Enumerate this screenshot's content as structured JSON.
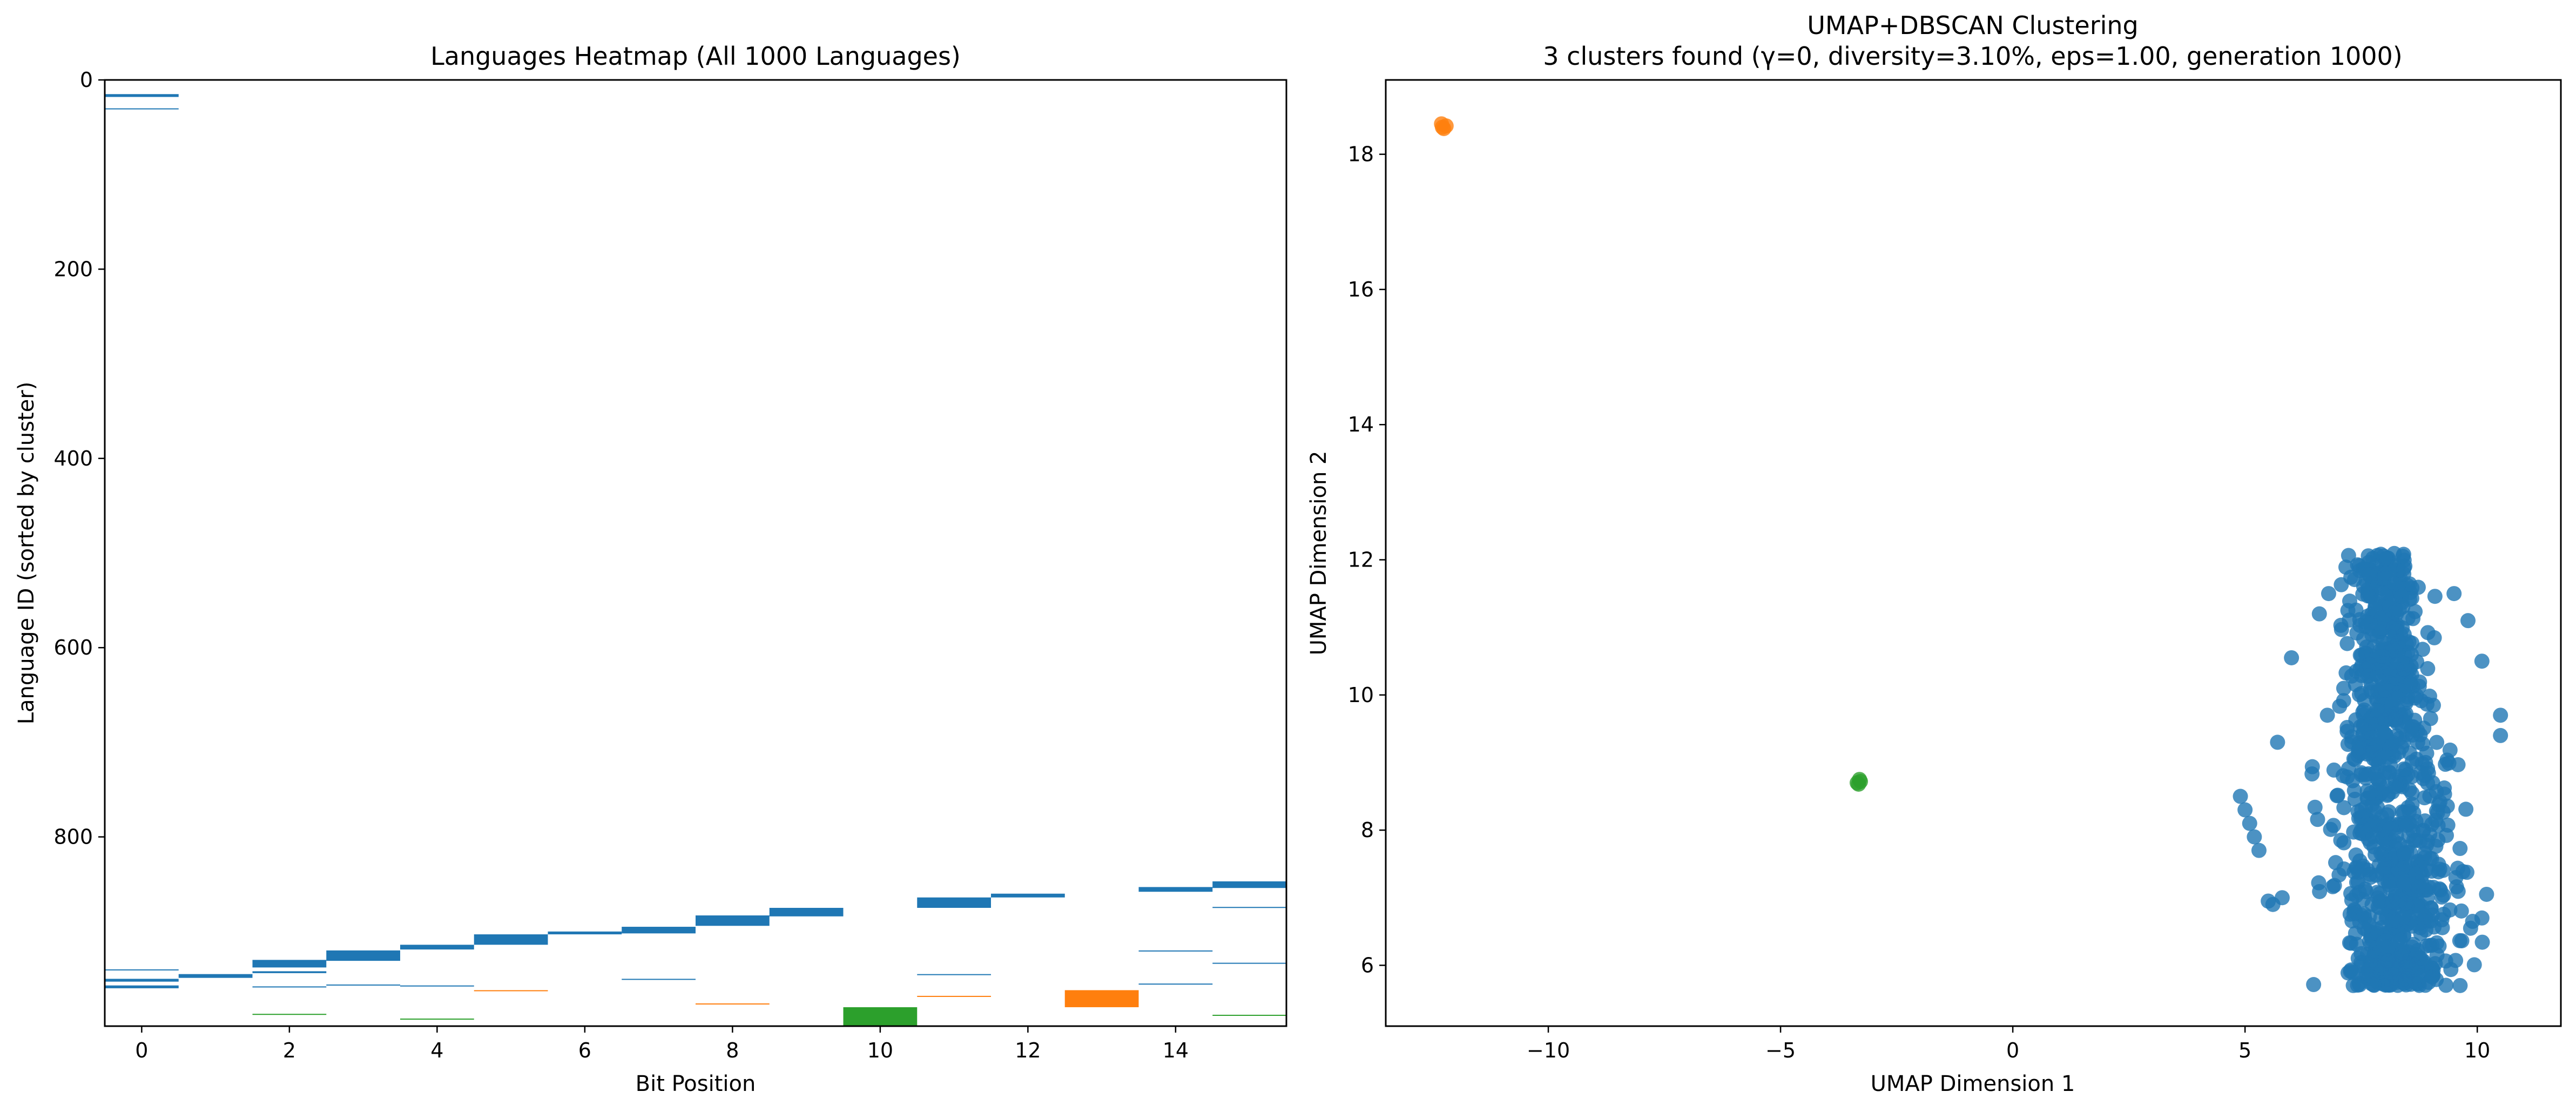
{
  "colors": {
    "blue": "#1f77b4",
    "orange": "#ff7f0e",
    "green": "#2ca02c"
  },
  "chart_data": [
    {
      "type": "heatmap",
      "title": "Languages Heatmap (All 1000 Languages)",
      "xlabel": "Bit Position",
      "ylabel": "Language ID (sorted by cluster)",
      "xlim": [
        -0.5,
        15.5
      ],
      "ylim": [
        0,
        1000
      ],
      "xticks": [
        0,
        2,
        4,
        6,
        8,
        10,
        12,
        14
      ],
      "yticks": [
        0,
        200,
        400,
        600,
        800
      ],
      "grid": false,
      "cells": [
        {
          "bit": 0,
          "y0": 15,
          "y1": 18,
          "cluster": "blue"
        },
        {
          "bit": 0,
          "y0": 30,
          "y1": 31,
          "cluster": "blue"
        },
        {
          "bit": 0,
          "y0": 940,
          "y1": 941,
          "cluster": "blue"
        },
        {
          "bit": 0,
          "y0": 950,
          "y1": 953,
          "cluster": "blue"
        },
        {
          "bit": 0,
          "y0": 957,
          "y1": 960,
          "cluster": "blue"
        },
        {
          "bit": 1,
          "y0": 945,
          "y1": 949,
          "cluster": "blue"
        },
        {
          "bit": 2,
          "y0": 930,
          "y1": 938,
          "cluster": "blue"
        },
        {
          "bit": 2,
          "y0": 942,
          "y1": 944,
          "cluster": "blue"
        },
        {
          "bit": 2,
          "y0": 958,
          "y1": 959,
          "cluster": "blue"
        },
        {
          "bit": 2,
          "y0": 987,
          "y1": 988,
          "cluster": "green"
        },
        {
          "bit": 3,
          "y0": 920,
          "y1": 931,
          "cluster": "blue"
        },
        {
          "bit": 3,
          "y0": 956,
          "y1": 957,
          "cluster": "blue"
        },
        {
          "bit": 4,
          "y0": 914,
          "y1": 919,
          "cluster": "blue"
        },
        {
          "bit": 4,
          "y0": 957,
          "y1": 958,
          "cluster": "blue"
        },
        {
          "bit": 4,
          "y0": 992,
          "y1": 993,
          "cluster": "green"
        },
        {
          "bit": 5,
          "y0": 903,
          "y1": 914,
          "cluster": "blue"
        },
        {
          "bit": 5,
          "y0": 962,
          "y1": 963,
          "cluster": "orange"
        },
        {
          "bit": 6,
          "y0": 900,
          "y1": 903,
          "cluster": "blue"
        },
        {
          "bit": 7,
          "y0": 895,
          "y1": 902,
          "cluster": "blue"
        },
        {
          "bit": 7,
          "y0": 950,
          "y1": 951,
          "cluster": "blue"
        },
        {
          "bit": 8,
          "y0": 883,
          "y1": 894,
          "cluster": "blue"
        },
        {
          "bit": 8,
          "y0": 976,
          "y1": 977,
          "cluster": "orange"
        },
        {
          "bit": 9,
          "y0": 875,
          "y1": 884,
          "cluster": "blue"
        },
        {
          "bit": 10,
          "y0": 980,
          "y1": 1000,
          "cluster": "green"
        },
        {
          "bit": 11,
          "y0": 864,
          "y1": 875,
          "cluster": "blue"
        },
        {
          "bit": 11,
          "y0": 945,
          "y1": 946,
          "cluster": "blue"
        },
        {
          "bit": 11,
          "y0": 968,
          "y1": 969,
          "cluster": "orange"
        },
        {
          "bit": 12,
          "y0": 860,
          "y1": 864,
          "cluster": "blue"
        },
        {
          "bit": 13,
          "y0": 962,
          "y1": 980,
          "cluster": "orange"
        },
        {
          "bit": 14,
          "y0": 853,
          "y1": 858,
          "cluster": "blue"
        },
        {
          "bit": 14,
          "y0": 920,
          "y1": 921,
          "cluster": "blue"
        },
        {
          "bit": 14,
          "y0": 955,
          "y1": 956,
          "cluster": "blue"
        },
        {
          "bit": 15,
          "y0": 847,
          "y1": 854,
          "cluster": "blue"
        },
        {
          "bit": 15,
          "y0": 874,
          "y1": 875,
          "cluster": "blue"
        },
        {
          "bit": 15,
          "y0": 933,
          "y1": 934,
          "cluster": "blue"
        },
        {
          "bit": 15,
          "y0": 988,
          "y1": 989,
          "cluster": "green"
        }
      ]
    },
    {
      "type": "scatter",
      "title": "UMAP+DBSCAN Clustering",
      "subtitle": "3 clusters found (γ=0, diversity=3.10%, eps=1.00, generation 1000)",
      "xlabel": "UMAP Dimension 1",
      "ylabel": "UMAP Dimension 2",
      "xlim": [
        -13.5,
        11.8
      ],
      "ylim": [
        5.1,
        19.1
      ],
      "xticks": [
        "−10",
        "−5",
        "0",
        "5",
        "10"
      ],
      "xtick_values": [
        -10,
        -5,
        0,
        5,
        10
      ],
      "yticks": [
        6,
        8,
        10,
        12,
        14,
        16,
        18
      ],
      "grid": false,
      "series": [
        {
          "cluster": "orange",
          "points": [
            [
              -12.3,
              18.45
            ],
            [
              -12.25,
              18.38
            ],
            [
              -12.2,
              18.42
            ],
            [
              -12.28,
              18.4
            ]
          ]
        },
        {
          "cluster": "green",
          "points": [
            [
              -3.35,
              8.7
            ],
            [
              -3.3,
              8.75
            ],
            [
              -3.32,
              8.68
            ],
            [
              -3.28,
              8.72
            ]
          ]
        },
        {
          "cluster": "blue",
          "region": {
            "x_center": 8.0,
            "y_center": 8.2,
            "x_spread": 1.6,
            "y_range": [
              5.7,
              12.1
            ],
            "n": 990
          },
          "points": [
            [
              4.9,
              8.5
            ],
            [
              5.0,
              8.3
            ],
            [
              5.1,
              8.1
            ],
            [
              5.2,
              7.9
            ],
            [
              5.3,
              7.7
            ],
            [
              5.5,
              6.95
            ],
            [
              5.6,
              6.9
            ],
            [
              5.8,
              7.0
            ],
            [
              9.9,
              6.65
            ],
            [
              10.1,
              6.7
            ],
            [
              10.2,
              7.05
            ],
            [
              10.5,
              9.4
            ],
            [
              10.5,
              9.7
            ],
            [
              10.1,
              10.5
            ],
            [
              8.4,
              12.05
            ],
            [
              7.6,
              11.85
            ],
            [
              6.8,
              11.5
            ],
            [
              6.6,
              11.2
            ],
            [
              6.0,
              10.55
            ],
            [
              5.7,
              9.3
            ],
            [
              9.5,
              11.5
            ],
            [
              9.8,
              11.1
            ]
          ]
        }
      ]
    }
  ]
}
